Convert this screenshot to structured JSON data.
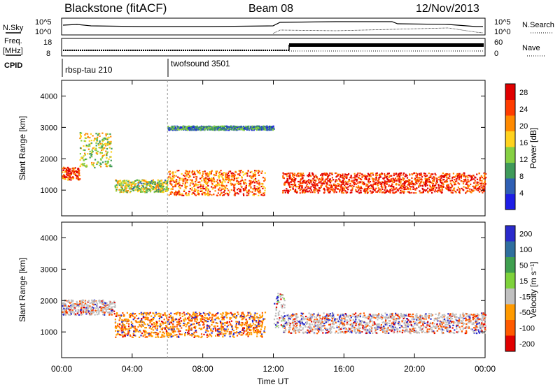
{
  "header": {
    "title": "Blackstone (fitACF)",
    "beam": "Beam 08",
    "date": "12/Nov/2013"
  },
  "summary_panel": {
    "left_label_top": "N.Sky",
    "left_ticks": [
      "10^5",
      "10^0"
    ],
    "right_ticks": [
      "10^5",
      "10^0"
    ],
    "right_label": "N.Search"
  },
  "freq_panel": {
    "left_label_top": "Freq.",
    "left_label_unit": "[MHz]",
    "left_ticks": [
      "18",
      "8"
    ],
    "right_ticks": [
      "60",
      "0"
    ],
    "right_label": "Nave"
  },
  "cpid_panel": {
    "label": "CPID",
    "programs": [
      {
        "name": "rbsp-tau 210",
        "start": "00:00"
      },
      {
        "name": "twofsound 3501",
        "start": "06:00"
      }
    ]
  },
  "chart_data": [
    {
      "type": "heatmap",
      "title": "",
      "ylabel": "Slant Range [km]",
      "xlabel": "",
      "x_range_hours": [
        0,
        24
      ],
      "ylim": [
        180,
        4500
      ],
      "y_ticks": [
        1000,
        2000,
        3000,
        4000
      ],
      "x_ticks": [
        "00:00",
        "04:00",
        "08:00",
        "12:00",
        "16:00",
        "20:00",
        "00:00"
      ],
      "colorbar": {
        "label": "Power [dB]",
        "ticks": [
          4,
          8,
          12,
          16,
          20,
          24,
          28
        ],
        "range": [
          0,
          30
        ],
        "colors": [
          "#1e1ee6",
          "#2f5fb4",
          "#3f9a5a",
          "#86d043",
          "#ffd21e",
          "#ff8a00",
          "#ff3c00",
          "#e00000"
        ]
      },
      "scatter_regions": [
        {
          "hour_start": 0.0,
          "hour_end": 1.0,
          "range_center": 1550,
          "range_width": 250,
          "value": 25
        },
        {
          "hour_start": 1.0,
          "hour_end": 2.8,
          "range_center": 2300,
          "range_width": 700,
          "value": 15
        },
        {
          "hour_start": 3.0,
          "hour_end": 6.0,
          "range_center": 1150,
          "range_width": 250,
          "value": 14
        },
        {
          "hour_start": 6.0,
          "hour_end": 11.5,
          "range_center": 1250,
          "range_width": 500,
          "value": 22
        },
        {
          "hour_start": 12.5,
          "hour_end": 24.0,
          "range_center": 1250,
          "range_width": 400,
          "value": 26
        },
        {
          "hour_start": 6.0,
          "hour_end": 12.0,
          "range_center": 3000,
          "range_width": 80,
          "value": 8
        }
      ]
    },
    {
      "type": "heatmap",
      "title": "",
      "ylabel": "Slant Range [km]",
      "xlabel": "Time UT",
      "x_range_hours": [
        0,
        24
      ],
      "ylim": [
        180,
        4500
      ],
      "y_ticks": [
        1000,
        2000,
        3000,
        4000
      ],
      "x_ticks": [
        "00:00",
        "04:00",
        "08:00",
        "12:00",
        "16:00",
        "20:00",
        "00:00"
      ],
      "colorbar": {
        "label": "Velocity [m s⁻¹]",
        "ticks": [
          200,
          100,
          50,
          15,
          -15,
          -50,
          -100,
          -200
        ],
        "colors": [
          "#2a2acc",
          "#2f6f9e",
          "#3f9f4f",
          "#7ed23b",
          "#c0c0c0",
          "#ff9a00",
          "#ff5a00",
          "#e00000"
        ]
      },
      "scatter_regions": [
        {
          "hour_start": 0.0,
          "hour_end": 3.0,
          "range_center": 1800,
          "range_width": 300,
          "value": 0
        },
        {
          "hour_start": 3.0,
          "hour_end": 11.5,
          "range_center": 1250,
          "range_width": 500,
          "value": -60
        },
        {
          "hour_start": 12.5,
          "hour_end": 24.0,
          "range_center": 1300,
          "range_width": 400,
          "value": 0
        },
        {
          "hour_start": 12.0,
          "hour_end": 12.6,
          "range_center": 1700,
          "range_width": 700,
          "value": 100
        }
      ]
    }
  ]
}
